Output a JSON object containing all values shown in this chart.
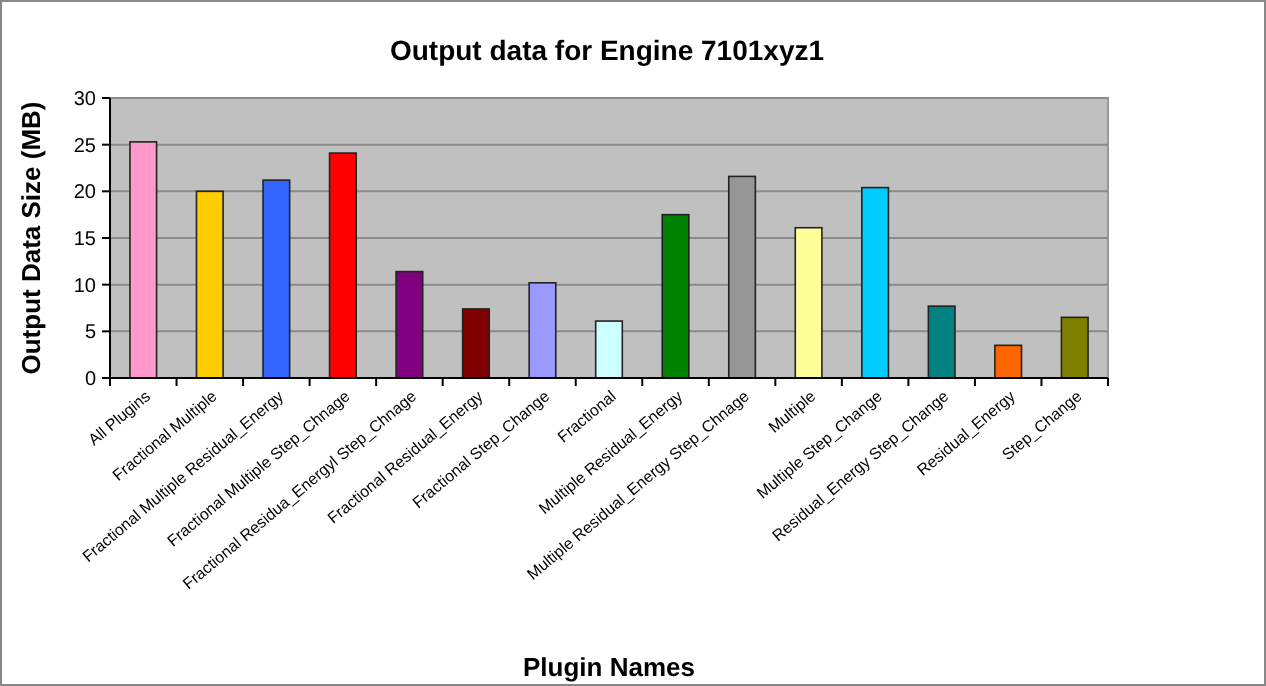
{
  "chart_data": {
    "type": "bar",
    "title": "Output data for Engine 7101xyz1",
    "xlabel": "Plugin Names",
    "ylabel": "Output Data Size (MB)",
    "categories": [
      "All Plugins",
      "Fractional Multiple",
      "Fractional Multiple Residual_Energy",
      "Fractional Multiple Step_Chnage",
      "Fractional Residua_Energyl Step_Chnage",
      "Fractional Residual_Energy",
      "Fractional Step_Change",
      "Fractional",
      "Multiple Residual_Energy",
      "Multiple Residual_Energy Step_Chnage",
      "Multiple",
      "Multiple Step_Change",
      "Residual_Energy Step_Change",
      "Residual_Energy",
      "Step_Change"
    ],
    "values": [
      25.3,
      20.0,
      21.2,
      24.1,
      11.4,
      7.4,
      10.2,
      6.1,
      17.5,
      21.6,
      16.1,
      20.4,
      7.7,
      3.5,
      6.5
    ],
    "colors": [
      "#ff99cc",
      "#ffcc00",
      "#3366ff",
      "#ff0000",
      "#800080",
      "#800000",
      "#9999ff",
      "#ccffff",
      "#008000",
      "#969696",
      "#ffff99",
      "#00ccff",
      "#008080",
      "#ff6600",
      "#808000"
    ],
    "ylim": [
      0,
      30
    ],
    "yticks": [
      0,
      5,
      10,
      15,
      20,
      25,
      30
    ],
    "grid": "y"
  }
}
